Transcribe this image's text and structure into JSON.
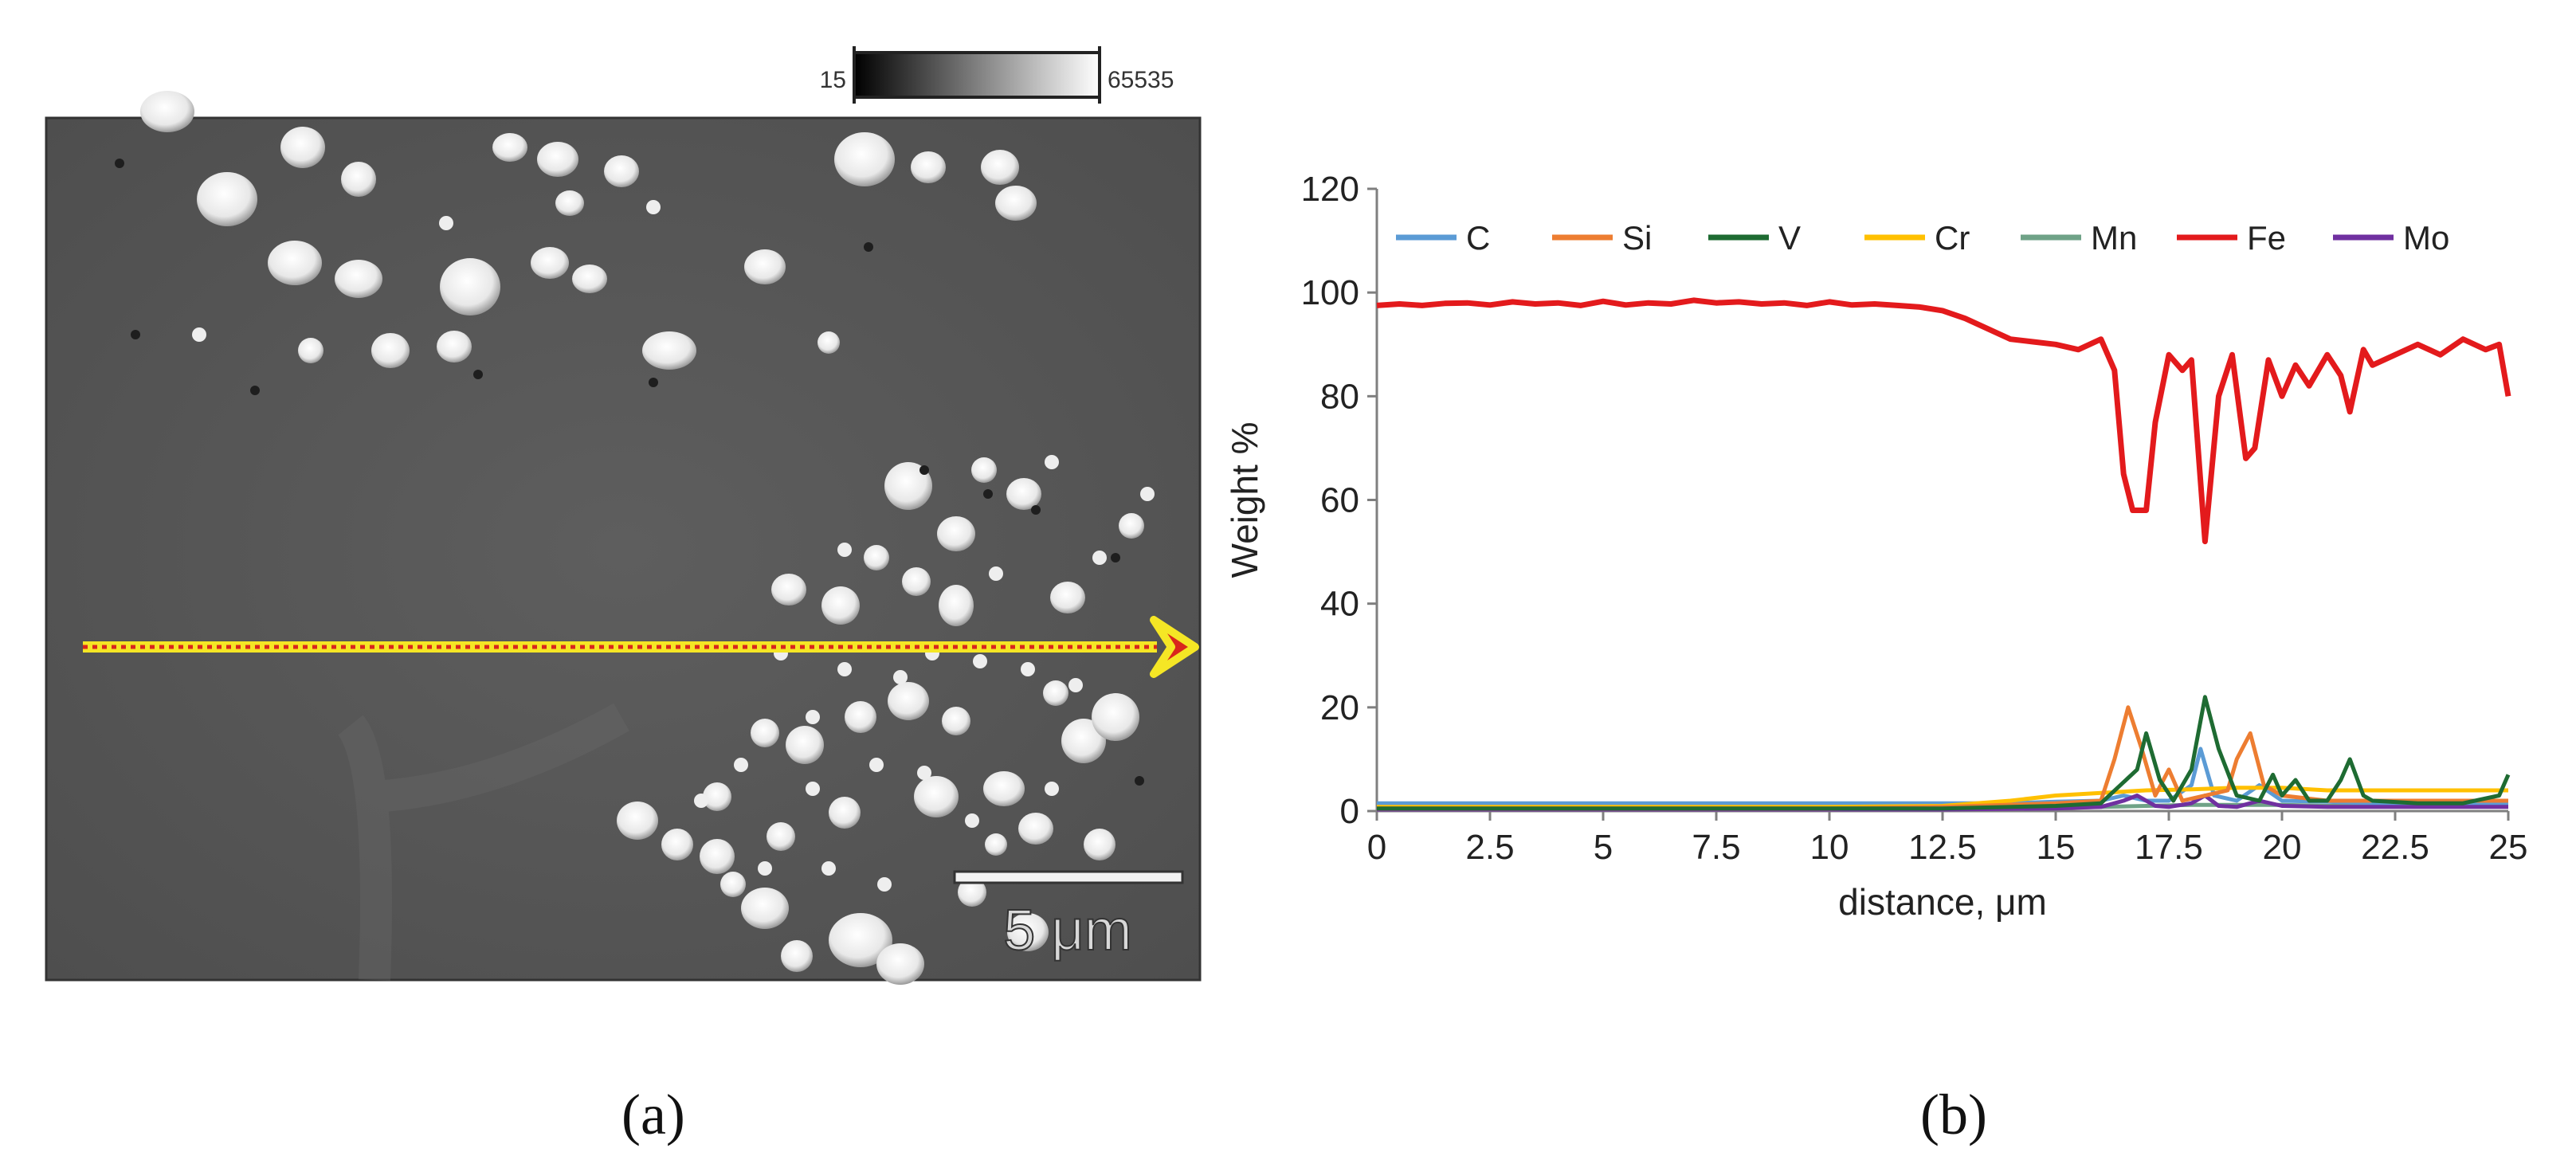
{
  "panel_a": {
    "label": "(a)",
    "colorbar": {
      "min": "15",
      "max": "65535"
    },
    "scale_bar": {
      "text": "5 μm"
    },
    "line_scan": {
      "color": "#f5e625",
      "dot_color": "#d9261c"
    }
  },
  "panel_b": {
    "label": "(b)"
  },
  "chart_data": {
    "type": "line",
    "title": "",
    "xlabel": "distance, μm",
    "ylabel": "Weight %",
    "xlim": [
      0,
      25
    ],
    "ylim": [
      0,
      120
    ],
    "x_ticks": [
      "0",
      "2.5",
      "5",
      "7.5",
      "10",
      "12.5",
      "15",
      "17.5",
      "20",
      "22.5",
      "25"
    ],
    "y_ticks": [
      "0",
      "20",
      "40",
      "60",
      "80",
      "100",
      "120"
    ],
    "grid": false,
    "legend_position": "top",
    "series": [
      {
        "name": "C",
        "color": "#5b9bd5",
        "x": [
          0,
          2,
          4,
          6,
          8,
          10,
          12,
          14,
          15,
          16,
          16.5,
          17,
          17.5,
          18,
          18.2,
          18.5,
          19,
          19.5,
          20,
          21,
          22,
          23,
          24,
          25
        ],
        "y": [
          1.5,
          1.5,
          1.5,
          1.5,
          1.5,
          1.5,
          1.5,
          1.5,
          1.8,
          2,
          3,
          2,
          2,
          5,
          12,
          3,
          2,
          5,
          2,
          1.8,
          1.5,
          1.5,
          1.5,
          1.5
        ]
      },
      {
        "name": "Si",
        "color": "#ed7d31",
        "x": [
          0,
          5,
          10,
          12.5,
          15,
          16,
          16.3,
          16.6,
          16.9,
          17.2,
          17.5,
          17.8,
          18.3,
          18.8,
          19,
          19.3,
          19.6,
          20,
          21,
          22,
          23,
          24,
          25
        ],
        "y": [
          0.5,
          0.5,
          0.5,
          0.8,
          1.5,
          2,
          10,
          20,
          12,
          3,
          8,
          2,
          3,
          4,
          10,
          15,
          5,
          3,
          2,
          2,
          2,
          2,
          2
        ]
      },
      {
        "name": "V",
        "color": "#1e6b32",
        "x": [
          0,
          5,
          10,
          12.5,
          15,
          16,
          16.8,
          17,
          17.3,
          17.6,
          18,
          18.3,
          18.6,
          19,
          19.5,
          19.8,
          20,
          20.3,
          20.6,
          21,
          21.3,
          21.5,
          21.8,
          22,
          23,
          24,
          24.8,
          25
        ],
        "y": [
          0.5,
          0.5,
          0.5,
          0.5,
          1,
          1.5,
          8,
          15,
          6,
          2,
          8,
          22,
          12,
          3,
          2,
          7,
          3,
          6,
          2,
          2,
          6,
          10,
          3,
          2,
          1.5,
          1.5,
          3,
          7
        ]
      },
      {
        "name": "Cr",
        "color": "#ffc000",
        "x": [
          0,
          5,
          10,
          12.5,
          14,
          15,
          16,
          17,
          18,
          19,
          20,
          21,
          22,
          23,
          24,
          25
        ],
        "y": [
          0.8,
          0.8,
          0.8,
          1,
          2,
          3,
          3.5,
          4,
          4.2,
          4.5,
          4.5,
          4,
          4,
          4,
          4,
          4
        ]
      },
      {
        "name": "Mn",
        "color": "#6fa287",
        "x": [
          0,
          5,
          10,
          12.5,
          15,
          16,
          17,
          18,
          19,
          20,
          21,
          22,
          23,
          24,
          25
        ],
        "y": [
          0.3,
          0.3,
          0.3,
          0.4,
          0.6,
          0.8,
          1,
          1.2,
          1.2,
          1.2,
          1,
          1,
          1,
          1,
          1
        ]
      },
      {
        "name": "Fe",
        "color": "#e31a1c",
        "x": [
          0,
          0.5,
          1,
          1.5,
          2,
          2.5,
          3,
          3.5,
          4,
          4.5,
          5,
          5.5,
          6,
          6.5,
          7,
          7.5,
          8,
          8.5,
          9,
          9.5,
          10,
          10.5,
          11,
          11.5,
          12,
          12.5,
          13,
          13.5,
          14,
          14.5,
          15,
          15.5,
          16,
          16.3,
          16.5,
          16.7,
          17,
          17.2,
          17.5,
          17.8,
          18,
          18.3,
          18.6,
          18.9,
          19.2,
          19.4,
          19.7,
          20,
          20.3,
          20.6,
          21,
          21.3,
          21.5,
          21.8,
          22,
          22.5,
          23,
          23.5,
          24,
          24.5,
          24.8,
          25
        ],
        "y": [
          97.5,
          97.8,
          97.5,
          97.9,
          98,
          97.6,
          98.2,
          97.8,
          98,
          97.5,
          98.3,
          97.6,
          98,
          97.8,
          98.5,
          98,
          98.2,
          97.8,
          98,
          97.5,
          98.2,
          97.6,
          97.8,
          97.5,
          97.2,
          96.5,
          95,
          93,
          91,
          90.5,
          90,
          89,
          91,
          85,
          65,
          58,
          58,
          75,
          88,
          85,
          87,
          52,
          80,
          88,
          68,
          70,
          87,
          80,
          86,
          82,
          88,
          84,
          77,
          89,
          86,
          88,
          90,
          88,
          91,
          89,
          90,
          80
        ]
      },
      {
        "name": "Mo",
        "color": "#7030a0",
        "x": [
          0,
          5,
          10,
          12.5,
          15,
          16,
          16.5,
          16.8,
          17.2,
          17.5,
          18,
          18.3,
          18.6,
          19,
          19.5,
          20,
          21,
          22,
          23,
          24,
          25
        ],
        "y": [
          0.3,
          0.3,
          0.3,
          0.3,
          0.5,
          0.8,
          2,
          3,
          1,
          0.8,
          1.5,
          3,
          1,
          0.8,
          2,
          1,
          0.8,
          0.8,
          0.8,
          0.8,
          0.8
        ]
      }
    ]
  }
}
